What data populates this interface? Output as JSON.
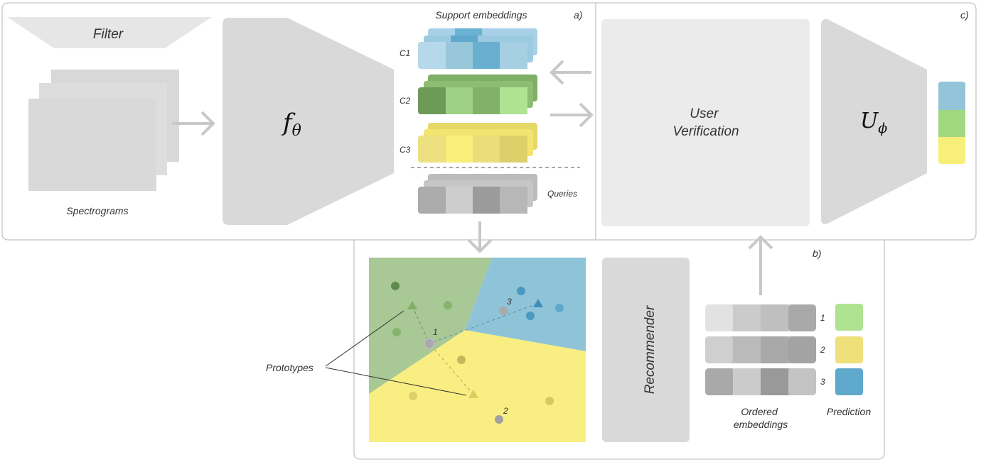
{
  "labels": {
    "filter": "Filter",
    "spectrograms": "Spectrograms",
    "encoder": "f",
    "encoder_sub": "θ",
    "support_embeddings": "Support embeddings",
    "panel_a": "a)",
    "panel_b": "b)",
    "panel_c": "c)",
    "c1": "C1",
    "c2": "C2",
    "c3": "C3",
    "queries": "Queries",
    "user_verification_line1": "User",
    "user_verification_line2": "Verification",
    "u_model": "U",
    "u_model_sub": "ϕ",
    "prototypes": "Prototypes",
    "recommender": "Recommender",
    "ordered_embeddings_line1": "Ordered",
    "ordered_embeddings_line2": "embeddings",
    "prediction": "Prediction",
    "rank1": "1",
    "rank2": "2",
    "rank3": "3",
    "query1": "1",
    "query2": "2",
    "query3": "3"
  },
  "colors": {
    "blue_class": "#5fa8cc",
    "green_class": "#7fb26a",
    "yellow_class": "#f8ee7a",
    "region_blue": "#8fc3d8",
    "region_green": "#a8c896",
    "region_yellow": "#f9ee82",
    "block_grey": "#d9d9d9",
    "arrow_grey": "#c8c8c8",
    "pred_green": "#aee392",
    "pred_yellow": "#f0e07c",
    "pred_blue": "#5fa9cc"
  }
}
